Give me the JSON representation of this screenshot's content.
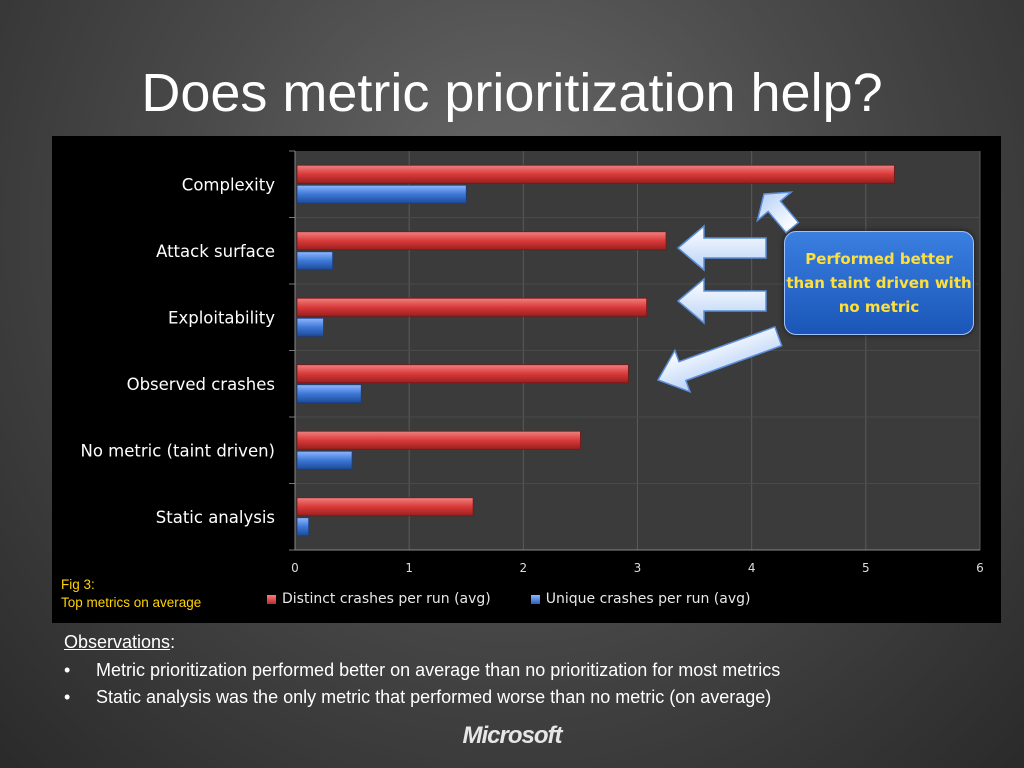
{
  "slide": {
    "title": "Does metric prioritization help?",
    "fig_caption_line1": "Fig 3:",
    "fig_caption_line2": "Top metrics on average",
    "callout": "Performed better than taint driven with no metric",
    "observations_heading": "Observations",
    "observations_colon": ":",
    "observations": [
      "Metric prioritization performed better on average than no prioritization for most metrics",
      "Static analysis was the only metric that performed worse than no metric (on average)"
    ],
    "brand": "Microsoft"
  },
  "chart_data": {
    "type": "bar",
    "orientation": "horizontal",
    "categories": [
      "Complexity",
      "Attack surface",
      "Exploitability",
      "Observed crashes",
      "No metric (taint driven)",
      "Static analysis"
    ],
    "series": [
      {
        "name": "Distinct crashes per run (avg)",
        "values": [
          5.25,
          3.25,
          3.08,
          2.92,
          2.5,
          1.56
        ],
        "color": "#d93a3a"
      },
      {
        "name": "Unique crashes per run (avg)",
        "values": [
          1.5,
          0.33,
          0.25,
          0.58,
          0.5,
          0.12
        ],
        "color": "#3d78d6"
      }
    ],
    "xlim": [
      0,
      6
    ],
    "xticks": [
      0,
      1,
      2,
      3,
      4,
      5,
      6
    ],
    "grid": true,
    "legend_position": "bottom"
  }
}
